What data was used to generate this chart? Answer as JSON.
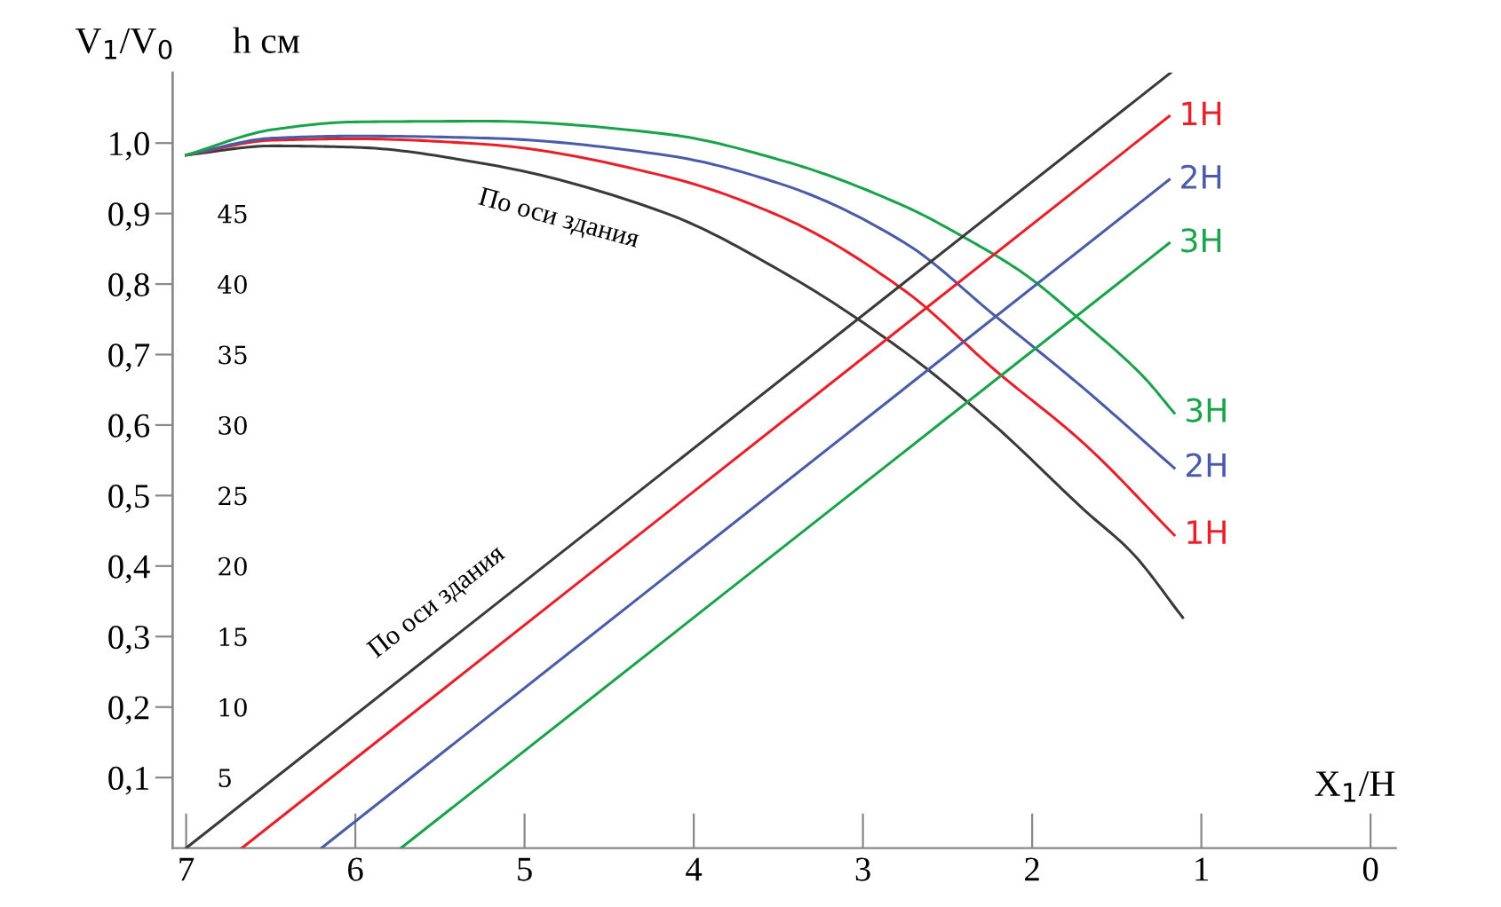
{
  "chart_data": {
    "type": "line",
    "xlabel": "X$_{1}$/H",
    "ylabel": "V$_{1}$/V$_{0}$",
    "y2label": "h см",
    "xlim": [
      7.08,
      -0.15
    ],
    "xticks": [
      7,
      6,
      5,
      4,
      3,
      2,
      1,
      0
    ],
    "ylim": [
      0,
      1.1
    ],
    "yticks": [
      {
        "value": 0.1,
        "label": "0,1"
      },
      {
        "value": 0.2,
        "label": "0,2"
      },
      {
        "value": 0.3,
        "label": "0,3"
      },
      {
        "value": 0.4,
        "label": "0,4"
      },
      {
        "value": 0.5,
        "label": "0,5"
      },
      {
        "value": 0.6,
        "label": "0,6"
      },
      {
        "value": 0.7,
        "label": "0,7"
      },
      {
        "value": 0.8,
        "label": "0,8"
      },
      {
        "value": 0.9,
        "label": "0,9"
      },
      {
        "value": 1.0,
        "label": "1,0"
      }
    ],
    "y2lim": [
      0,
      55
    ],
    "y2ticks": [
      5,
      10,
      15,
      20,
      25,
      30,
      35,
      40,
      45
    ],
    "grid": false,
    "legend": false,
    "marker": "none",
    "line_style": "solid",
    "series": [
      {
        "color": "#3a3a3a",
        "x": [
          7,
          6.49,
          6.0,
          5.22,
          4.17,
          3.46,
          2.75,
          2.22,
          1.69,
          1.41,
          1.11
        ],
        "values": [
          0.983,
          0.996,
          0.994,
          0.97,
          0.901,
          0.815,
          0.703,
          0.599,
          0.479,
          0.419,
          0.327
        ]
      },
      {
        "name": "1H",
        "color": "#e8202a",
        "x": [
          7,
          6.49,
          6.0,
          5.22,
          4.17,
          3.46,
          2.75,
          2.22,
          1.69,
          1.16
        ],
        "values": [
          0.983,
          1.004,
          1.006,
          0.998,
          0.953,
          0.893,
          0.79,
          0.678,
          0.573,
          0.444
        ]
      },
      {
        "name": "2H",
        "color": "#4a5ca8",
        "x": [
          7,
          6.49,
          6.0,
          5.22,
          4.17,
          3.46,
          2.75,
          2.22,
          1.69,
          1.16
        ],
        "values": [
          0.983,
          1.007,
          1.01,
          1.007,
          0.983,
          0.94,
          0.858,
          0.755,
          0.651,
          0.539
        ]
      },
      {
        "name": "3H",
        "color": "#1aa34a",
        "x": [
          7,
          6.49,
          6.0,
          5.22,
          4.17,
          3.46,
          2.75,
          2.4,
          2.05,
          1.7,
          1.34,
          1.16
        ],
        "values": [
          0.983,
          1.019,
          1.03,
          1.031,
          1.013,
          0.974,
          0.91,
          0.866,
          0.815,
          0.746,
          0.668,
          0.617
        ]
      },
      {
        "axis": "y2",
        "color": "#3a3a3a",
        "x": [
          7,
          1.18
        ],
        "values": [
          0,
          55
        ]
      },
      {
        "axis": "y2",
        "name": "1H",
        "color": "#e8202a",
        "x": [
          6.67,
          1.19
        ],
        "values": [
          0,
          51.9
        ]
      },
      {
        "axis": "y2",
        "name": "2H",
        "color": "#4a5ca8",
        "x": [
          6.2,
          1.19
        ],
        "values": [
          0,
          47.4
        ]
      },
      {
        "axis": "y2",
        "name": "3H",
        "color": "#1aa34a",
        "x": [
          5.73,
          1.19
        ],
        "values": [
          0,
          42.9
        ]
      }
    ],
    "annotations": [
      {
        "text": "По оси здания",
        "x": 4.78,
        "y": 0.94
      },
      {
        "text": "По оси здания",
        "x": 5.37,
        "y": 0.31
      }
    ]
  }
}
